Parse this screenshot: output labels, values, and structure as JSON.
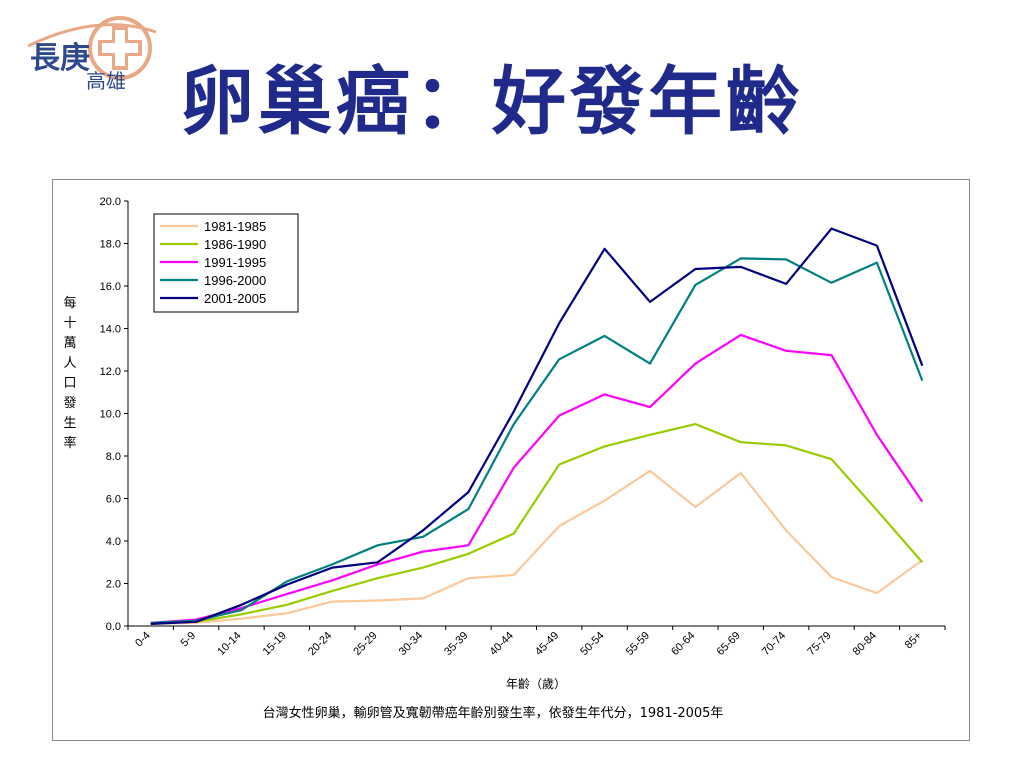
{
  "logo": {
    "text_top": "長庚",
    "text_bottom": "高雄",
    "icon": "hospital-cross-logo",
    "accent_color": "#e9a886",
    "text_color": "#2e4a8c"
  },
  "title": "卵巢癌：好發年齡",
  "title_color": "#1f2a8a",
  "chart_data": {
    "type": "line",
    "ylabel": "每十萬人口發生率",
    "xlabel": "年齡（歲）",
    "caption": "台灣女性卵巢，輸卵管及寬韌帶癌年齡別發生率，依發生年代分，1981-2005年",
    "ylim": [
      0,
      20
    ],
    "yticks": [
      "0.0",
      "2.0",
      "4.0",
      "6.0",
      "8.0",
      "10.0",
      "12.0",
      "14.0",
      "16.0",
      "18.0",
      "20.0"
    ],
    "categories": [
      "0-4",
      "5-9",
      "10-14",
      "15-19",
      "20-24",
      "25-29",
      "30-34",
      "35-39",
      "40-44",
      "45-49",
      "50-54",
      "55-59",
      "60-64",
      "65-69",
      "70-74",
      "75-79",
      "80-84",
      "85+"
    ],
    "legend_position": "top-left",
    "series": [
      {
        "name": "1981-1985",
        "color": "#fac89a",
        "values": [
          0.1,
          0.15,
          0.35,
          0.6,
          1.15,
          1.2,
          1.3,
          2.25,
          2.4,
          4.7,
          5.9,
          7.3,
          5.6,
          7.2,
          4.5,
          2.3,
          1.55,
          3.1
        ]
      },
      {
        "name": "1986-1990",
        "color": "#99cc00",
        "values": [
          0.1,
          0.2,
          0.55,
          1.0,
          1.65,
          2.25,
          2.75,
          3.4,
          4.35,
          7.6,
          8.45,
          9.0,
          9.5,
          8.65,
          8.5,
          7.85,
          5.45,
          3.0
        ]
      },
      {
        "name": "1991-1995",
        "color": "#ff00ff",
        "values": [
          0.15,
          0.3,
          0.85,
          1.5,
          2.15,
          2.9,
          3.5,
          3.8,
          7.45,
          9.9,
          10.9,
          10.3,
          12.35,
          13.7,
          12.95,
          12.75,
          9.0,
          5.85
        ]
      },
      {
        "name": "1996-2000",
        "color": "#008080",
        "values": [
          0.15,
          0.25,
          0.75,
          2.1,
          2.9,
          3.8,
          4.2,
          5.5,
          9.5,
          12.55,
          13.65,
          12.35,
          16.05,
          17.3,
          17.25,
          16.15,
          17.1,
          11.55
        ]
      },
      {
        "name": "2001-2005",
        "color": "#000080",
        "values": [
          0.1,
          0.2,
          1.0,
          1.95,
          2.75,
          3.0,
          4.5,
          6.3,
          10.1,
          14.25,
          17.75,
          15.25,
          16.8,
          16.9,
          16.1,
          18.7,
          17.9,
          12.25
        ]
      }
    ]
  }
}
